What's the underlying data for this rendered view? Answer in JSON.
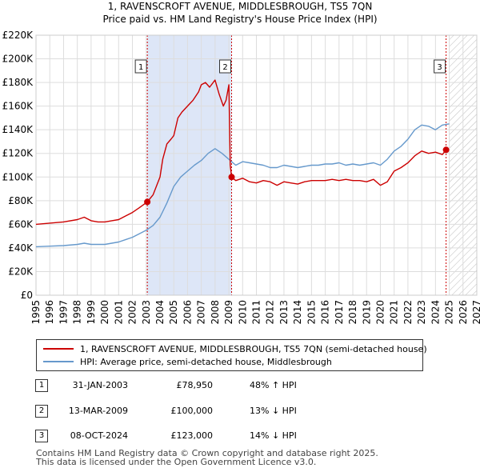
{
  "title": {
    "line1": "1, RAVENSCROFT AVENUE, MIDDLESBROUGH, TS5 7QN",
    "line2": "Price paid vs. HM Land Registry's House Price Index (HPI)"
  },
  "colors": {
    "price_line": "#cc0000",
    "hpi_line": "#6699cc",
    "sale_band": "#dde6f7",
    "vline": "#cc0000"
  },
  "chart_data": {
    "type": "line",
    "ylim": [
      0,
      220000
    ],
    "xlim": [
      1995,
      2027
    ],
    "y_ticks": [
      {
        "v": 0,
        "label": "£0"
      },
      {
        "v": 20000,
        "label": "£20K"
      },
      {
        "v": 40000,
        "label": "£40K"
      },
      {
        "v": 60000,
        "label": "£60K"
      },
      {
        "v": 80000,
        "label": "£80K"
      },
      {
        "v": 100000,
        "label": "£100K"
      },
      {
        "v": 120000,
        "label": "£120K"
      },
      {
        "v": 140000,
        "label": "£140K"
      },
      {
        "v": 160000,
        "label": "£160K"
      },
      {
        "v": 180000,
        "label": "£180K"
      },
      {
        "v": 200000,
        "label": "£200K"
      },
      {
        "v": 220000,
        "label": "£220K"
      }
    ],
    "x_ticks": [
      "1995",
      "1996",
      "1997",
      "1998",
      "1999",
      "2000",
      "2001",
      "2002",
      "2003",
      "2004",
      "2005",
      "2006",
      "2007",
      "2008",
      "2009",
      "2010",
      "2011",
      "2012",
      "2013",
      "2014",
      "2015",
      "2016",
      "2017",
      "2018",
      "2019",
      "2020",
      "2021",
      "2022",
      "2023",
      "2024",
      "2025",
      "2026",
      "2027"
    ],
    "sale_band": [
      2003.08,
      2009.2
    ],
    "future_start": 2025.0,
    "series": [
      {
        "name": "1, RAVENSCROFT AVENUE, MIDDLESBROUGH, TS5 7QN (semi-detached house)",
        "x": [
          1995,
          1996,
          1997,
          1998,
          1998.5,
          1999,
          1999.5,
          2000,
          2000.5,
          2001,
          2001.5,
          2002,
          2002.5,
          2003.08,
          2003.5,
          2004,
          2004.2,
          2004.5,
          2004.8,
          2005,
          2005.3,
          2005.6,
          2006,
          2006.4,
          2006.8,
          2007,
          2007.3,
          2007.6,
          2008,
          2008.3,
          2008.6,
          2008.8,
          2009,
          2009.1,
          2009.2,
          2009.5,
          2010,
          2010.5,
          2011,
          2011.5,
          2012,
          2012.5,
          2013,
          2013.5,
          2014,
          2014.5,
          2015,
          2015.5,
          2016,
          2016.5,
          2017,
          2017.5,
          2018,
          2018.5,
          2019,
          2019.5,
          2020,
          2020.5,
          2021,
          2021.5,
          2022,
          2022.5,
          2023,
          2023.5,
          2024,
          2024.5,
          2024.77
        ],
        "values": [
          60000,
          61000,
          62000,
          64000,
          66000,
          63000,
          62000,
          62000,
          63000,
          64000,
          67000,
          70000,
          74000,
          78950,
          85000,
          100000,
          115000,
          128000,
          132000,
          135000,
          150000,
          155000,
          160000,
          165000,
          172000,
          178000,
          180000,
          176000,
          182000,
          170000,
          160000,
          165000,
          178000,
          110000,
          100000,
          97000,
          99000,
          96000,
          95000,
          97000,
          96000,
          93000,
          96000,
          95000,
          94000,
          96000,
          97000,
          97000,
          97000,
          98000,
          97000,
          98000,
          97000,
          97000,
          96000,
          98000,
          93000,
          96000,
          105000,
          108000,
          112000,
          118000,
          122000,
          120000,
          121000,
          119000,
          123000
        ]
      },
      {
        "name": "HPI: Average price, semi-detached house, Middlesbrough",
        "x": [
          1995,
          1996,
          1997,
          1998,
          1998.5,
          1999,
          1999.5,
          2000,
          2000.5,
          2001,
          2001.5,
          2002,
          2002.5,
          2003,
          2003.5,
          2004,
          2004.5,
          2005,
          2005.5,
          2006,
          2006.5,
          2007,
          2007.5,
          2008,
          2008.5,
          2009,
          2009.5,
          2010,
          2010.5,
          2011,
          2011.5,
          2012,
          2012.5,
          2013,
          2013.5,
          2014,
          2014.5,
          2015,
          2015.5,
          2016,
          2016.5,
          2017,
          2017.5,
          2018,
          2018.5,
          2019,
          2019.5,
          2020,
          2020.5,
          2021,
          2021.5,
          2022,
          2022.5,
          2023,
          2023.5,
          2024,
          2024.5,
          2025
        ],
        "values": [
          41000,
          41500,
          42000,
          43000,
          44000,
          43000,
          43000,
          43000,
          44000,
          45000,
          47000,
          49000,
          52000,
          55000,
          59000,
          66000,
          78000,
          92000,
          100000,
          105000,
          110000,
          114000,
          120000,
          124000,
          120000,
          115000,
          110000,
          113000,
          112000,
          111000,
          110000,
          108000,
          108000,
          110000,
          109000,
          108000,
          109000,
          110000,
          110000,
          111000,
          111000,
          112000,
          110000,
          111000,
          110000,
          111000,
          112000,
          110000,
          115000,
          122000,
          126000,
          132000,
          140000,
          144000,
          143000,
          140000,
          144000,
          145000
        ]
      }
    ],
    "sales": [
      {
        "num": "1",
        "x": 2003.08,
        "value": 78950
      },
      {
        "num": "2",
        "x": 2009.2,
        "value": 100000
      },
      {
        "num": "3",
        "x": 2024.77,
        "value": 123000
      }
    ]
  },
  "legend": {
    "price_label": "1, RAVENSCROFT AVENUE, MIDDLESBROUGH, TS5 7QN (semi-detached house)",
    "hpi_label": "HPI: Average price, semi-detached house, Middlesbrough"
  },
  "table": [
    {
      "num": "1",
      "date": "31-JAN-2003",
      "price": "£78,950",
      "hpi": "48% ↑ HPI"
    },
    {
      "num": "2",
      "date": "13-MAR-2009",
      "price": "£100,000",
      "hpi": "13% ↓ HPI"
    },
    {
      "num": "3",
      "date": "08-OCT-2024",
      "price": "£123,000",
      "hpi": "14% ↓ HPI"
    }
  ],
  "footer": {
    "line1": "Contains HM Land Registry data © Crown copyright and database right 2025.",
    "line2": "This data is licensed under the Open Government Licence v3.0."
  }
}
